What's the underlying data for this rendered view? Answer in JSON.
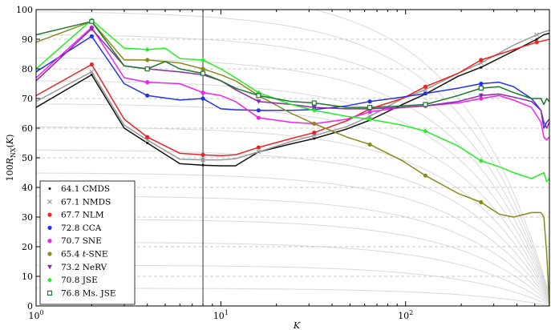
{
  "chart_data": {
    "type": "line",
    "xscale": "log",
    "xlim": [
      1,
      600
    ],
    "ylim": [
      0,
      100
    ],
    "xlabel": "K",
    "ylabel": "100R_NX(K)",
    "xticks": [
      {
        "value": 1,
        "base": "10",
        "exp": "0"
      },
      {
        "value": 10,
        "base": "10",
        "exp": "1"
      },
      {
        "value": 100,
        "base": "10",
        "exp": "2"
      }
    ],
    "yticks": [
      0,
      10,
      20,
      30,
      40,
      50,
      60,
      70,
      80,
      90,
      100
    ],
    "marked_k": 8,
    "legend_position": "bottom-left",
    "series": [
      {
        "name": "CMDS",
        "score": "64.1",
        "color": "#111111",
        "marker": "dot",
        "x": [
          1,
          2,
          3,
          4,
          6,
          8,
          10,
          12,
          16,
          24,
          32,
          48,
          64,
          96,
          128,
          192,
          256,
          384,
          512,
          560,
          600
        ],
        "y": [
          67,
          78,
          60,
          55,
          48,
          47.5,
          47.3,
          47.3,
          52,
          54.7,
          56.5,
          59.7,
          62.7,
          68,
          71.5,
          77.5,
          80.5,
          86,
          90,
          91.5,
          92
        ]
      },
      {
        "name": "NMDS",
        "score": "67.1",
        "color": "#9a9a9a",
        "marker": "x",
        "x": [
          1,
          2,
          3,
          4,
          6,
          8,
          10,
          12,
          16,
          24,
          32,
          48,
          64,
          96,
          128,
          192,
          256,
          384,
          512,
          560,
          600
        ],
        "y": [
          69,
          79,
          61,
          56,
          49.5,
          49.3,
          49.3,
          49.7,
          52,
          55.5,
          57.5,
          60.5,
          64,
          70,
          73,
          78.5,
          82,
          88,
          91.5,
          92.5,
          93
        ]
      },
      {
        "name": "NLM",
        "score": "67.7",
        "color": "#ee2222",
        "marker": "circle",
        "x": [
          1,
          2,
          3,
          4,
          6,
          8,
          10,
          12,
          16,
          24,
          32,
          48,
          64,
          96,
          128,
          192,
          256,
          384,
          512,
          560,
          600
        ],
        "y": [
          71,
          81.5,
          63,
          57,
          51.5,
          51,
          50.7,
          51,
          53.5,
          56.5,
          58.5,
          62.5,
          66.5,
          70,
          74,
          78.5,
          83,
          86.5,
          89,
          89.5,
          90
        ]
      },
      {
        "name": "CCA",
        "score": "72.8",
        "color": "#2233ee",
        "marker": "circle",
        "x": [
          1,
          2,
          3,
          4,
          6,
          8,
          10,
          12,
          16,
          24,
          32,
          48,
          64,
          96,
          128,
          192,
          256,
          320,
          384,
          480,
          540,
          560,
          580,
          600
        ],
        "y": [
          79,
          91,
          75,
          71,
          69.5,
          70,
          66.5,
          66.2,
          66,
          66,
          66.3,
          67.5,
          69,
          70.5,
          71.7,
          73.5,
          75,
          75.5,
          74,
          70,
          66,
          60,
          62,
          63
        ]
      },
      {
        "name": "SNE",
        "score": "70.7",
        "color": "#ee22ee",
        "marker": "circle",
        "x": [
          1,
          2,
          3,
          4,
          6,
          8,
          10,
          12,
          16,
          24,
          32,
          48,
          64,
          96,
          128,
          192,
          256,
          320,
          384,
          480,
          540,
          560,
          580,
          600
        ],
        "y": [
          77,
          94,
          77,
          75.5,
          75,
          72,
          71,
          69,
          63.5,
          62,
          61.5,
          63,
          65.5,
          67,
          67.5,
          68.5,
          70,
          71,
          69.5,
          67,
          62,
          57,
          56,
          57
        ]
      },
      {
        "name": "t-SNE",
        "score": "65.4",
        "color": "#8a8a1a",
        "marker": "circle",
        "x": [
          1,
          2,
          3,
          4,
          6,
          8,
          10,
          12,
          16,
          24,
          32,
          48,
          64,
          96,
          128,
          192,
          256,
          320,
          384,
          480,
          540,
          560,
          580,
          600
        ],
        "y": [
          89,
          96,
          83,
          83,
          82,
          80,
          78,
          76,
          71,
          65,
          61.5,
          57,
          54.5,
          49,
          44,
          38,
          35,
          31,
          30,
          31.5,
          31.5,
          30,
          18,
          0
        ]
      },
      {
        "name": "NeRV",
        "score": "73.2",
        "color": "#8a2aa8",
        "marker": "triangle-down",
        "x": [
          1,
          2,
          3,
          4,
          6,
          8,
          10,
          12,
          16,
          24,
          32,
          48,
          64,
          96,
          128,
          192,
          256,
          320,
          384,
          480,
          540,
          560,
          580,
          600
        ],
        "y": [
          76,
          93.5,
          81,
          80,
          79,
          78,
          76,
          73,
          69,
          68,
          67,
          66.5,
          66.5,
          67,
          67.5,
          69,
          71,
          71.5,
          70.5,
          69,
          66,
          62,
          60,
          62
        ]
      },
      {
        "name": "JSE",
        "score": "70.8",
        "color": "#22ee22",
        "marker": "diamond",
        "x": [
          1,
          2,
          3,
          4,
          5,
          6,
          8,
          10,
          12,
          16,
          24,
          32,
          48,
          64,
          96,
          128,
          192,
          256,
          320,
          384,
          480,
          540,
          560,
          580,
          600
        ],
        "y": [
          80,
          96.5,
          87,
          86.5,
          87,
          83.5,
          83,
          80,
          77,
          72,
          68,
          66,
          64,
          63,
          61,
          59,
          54,
          49,
          47,
          45,
          43,
          44.5,
          45,
          42,
          43
        ]
      },
      {
        "name": "Ms. JSE",
        "score": "76.8",
        "color": "#1a7a2a",
        "marker": "square",
        "x": [
          1,
          2,
          3,
          4,
          5,
          6,
          8,
          10,
          12,
          16,
          24,
          32,
          48,
          64,
          96,
          128,
          192,
          256,
          320,
          384,
          480,
          540,
          560,
          580,
          600
        ],
        "y": [
          91.5,
          96,
          81,
          80,
          82.5,
          80,
          78.5,
          76,
          73.5,
          71,
          69,
          68.5,
          67,
          67,
          67.5,
          68,
          71,
          73.5,
          74,
          72,
          70,
          70,
          68,
          70,
          69
        ]
      }
    ]
  }
}
